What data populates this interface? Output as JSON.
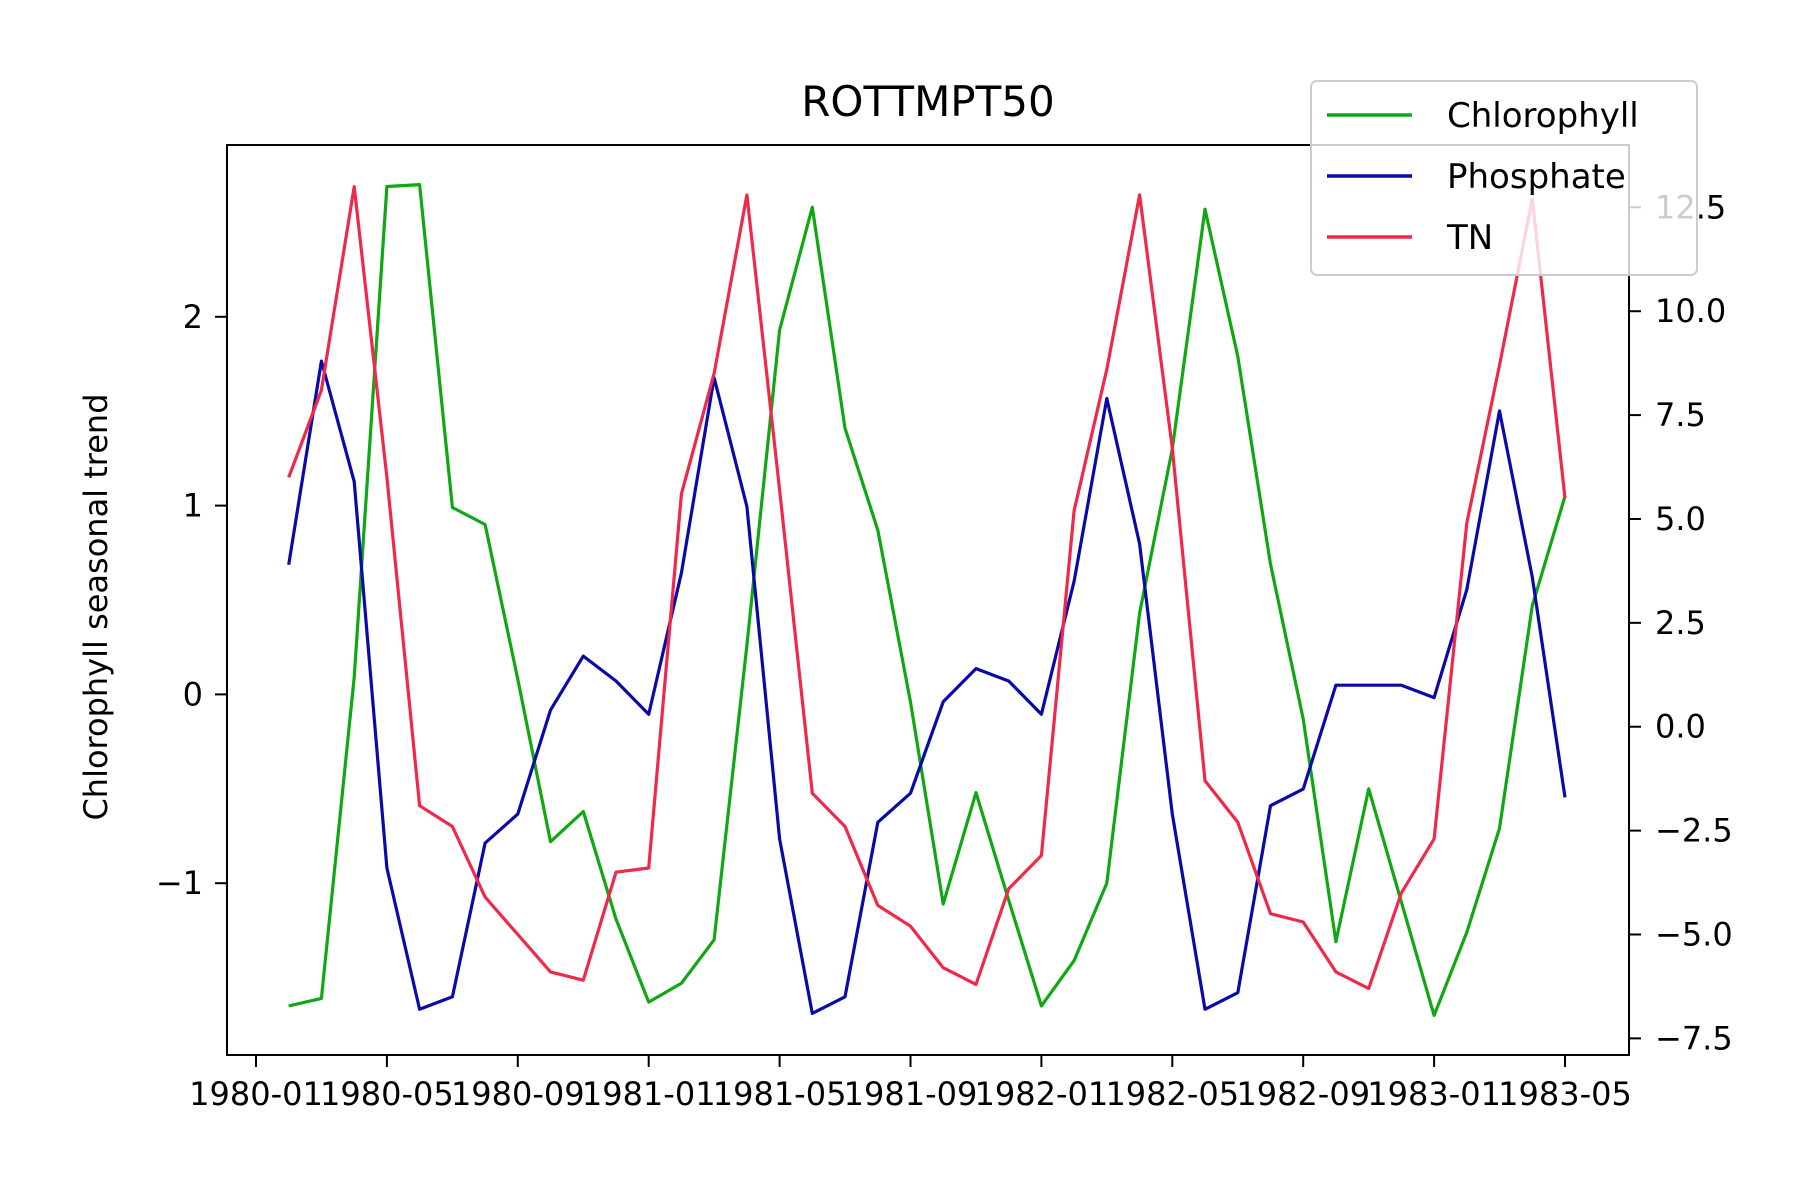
{
  "chart_data": {
    "type": "line",
    "title": "ROTTMPT50",
    "xlabel": "",
    "ylabel": "Chlorophyll seasonal trend",
    "y2label": "",
    "x_ticks": [
      "1980-01",
      "1980-05",
      "1980-09",
      "1981-01",
      "1981-05",
      "1981-09",
      "1982-01",
      "1982-05",
      "1982-09",
      "1983-01",
      "1983-05"
    ],
    "y_ticks": [
      "2",
      "1",
      "0",
      "−1"
    ],
    "y2_ticks": [
      "12.5",
      "10.0",
      "7.5",
      "5.0",
      "2.5",
      "0.0",
      "−2.5",
      "−5.0",
      "−7.5"
    ],
    "ylim": [
      -1.91,
      2.91
    ],
    "y2lim": [
      -7.9,
      14.0
    ],
    "grid": false,
    "legend_position": "top-right",
    "x": [
      "1980-02",
      "1980-03",
      "1980-04",
      "1980-05",
      "1980-06",
      "1980-07",
      "1980-08",
      "1980-09",
      "1980-10",
      "1980-11",
      "1980-12",
      "1981-01",
      "1981-02",
      "1981-03",
      "1981-04",
      "1981-05",
      "1981-06",
      "1981-07",
      "1981-08",
      "1981-09",
      "1981-10",
      "1981-11",
      "1981-12",
      "1982-01",
      "1982-02",
      "1982-03",
      "1982-04",
      "1982-05",
      "1982-06",
      "1982-07",
      "1982-08",
      "1982-09",
      "1982-10",
      "1982-11",
      "1982-12",
      "1983-01",
      "1983-02",
      "1983-03",
      "1983-04",
      "1983-05"
    ],
    "series": [
      {
        "name": "Chlorophyll",
        "axis": "left",
        "color": "#0fa812",
        "values": [
          -1.65,
          -1.61,
          0.09,
          2.69,
          2.7,
          0.99,
          0.9,
          0.08,
          -0.78,
          -0.62,
          -1.19,
          -1.63,
          -1.53,
          -1.3,
          0.26,
          1.93,
          2.58,
          1.41,
          0.87,
          -0.04,
          -1.11,
          -0.52,
          -1.09,
          -1.65,
          -1.41,
          -1.0,
          0.43,
          1.3,
          2.57,
          1.79,
          0.69,
          -0.13,
          -1.31,
          -0.5,
          -1.1,
          -1.7,
          -1.26,
          -0.71,
          0.47,
          1.05
        ]
      },
      {
        "name": "Phosphate",
        "axis": "right",
        "color": "#0a0aa8",
        "values": [
          3.9,
          8.8,
          5.9,
          -3.4,
          -6.8,
          -6.5,
          -2.8,
          -2.1,
          0.4,
          1.7,
          1.1,
          0.3,
          3.7,
          8.4,
          5.3,
          -2.7,
          -6.9,
          -6.5,
          -2.3,
          -1.6,
          0.6,
          1.4,
          1.1,
          0.3,
          3.5,
          7.9,
          4.4,
          -2.1,
          -6.8,
          -6.4,
          -1.9,
          -1.5,
          1.0,
          1.0,
          1.0,
          0.7,
          3.3,
          7.6,
          3.6,
          -1.7
        ]
      },
      {
        "name": "TN",
        "axis": "right",
        "color": "#f0284a",
        "values": [
          6.0,
          8.1,
          13.0,
          6.0,
          -1.9,
          -2.4,
          -4.1,
          -5.0,
          -5.9,
          -6.1,
          -3.5,
          -3.4,
          5.6,
          8.5,
          12.8,
          5.7,
          -1.6,
          -2.4,
          -4.3,
          -4.8,
          -5.8,
          -6.2,
          -3.9,
          -3.1,
          5.2,
          8.6,
          12.8,
          6.7,
          -1.3,
          -2.3,
          -4.5,
          -4.7,
          -5.9,
          -6.3,
          -4.0,
          -2.7,
          4.9,
          8.7,
          12.7,
          5.5
        ]
      }
    ]
  }
}
